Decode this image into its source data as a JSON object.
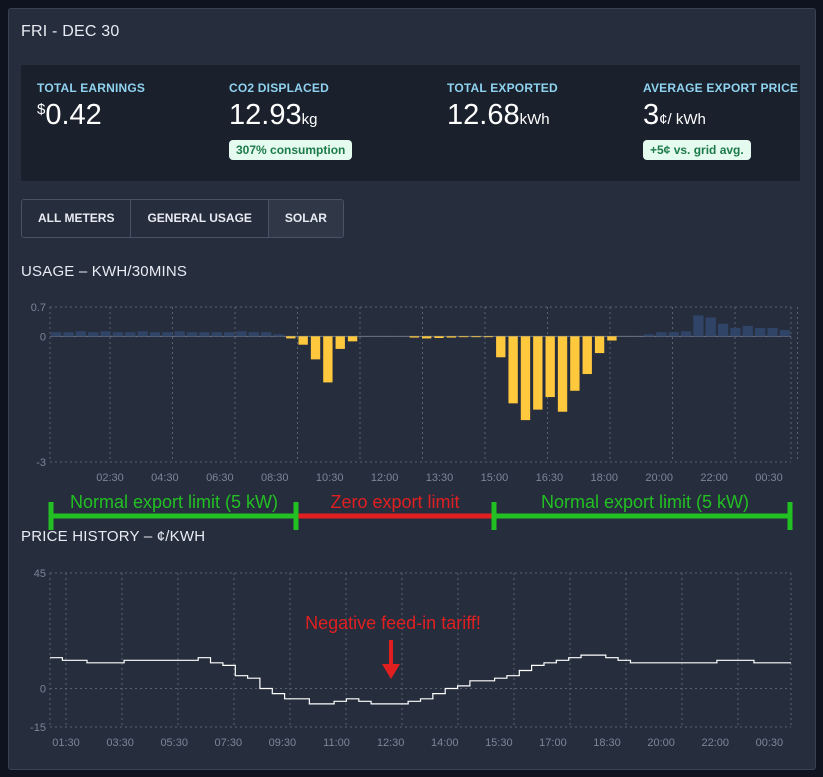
{
  "header": {
    "date": "FRI - DEC 30"
  },
  "stats": {
    "earnings": {
      "label": "TOTAL EARNINGS",
      "symbol": "$",
      "value": "0.42"
    },
    "co2": {
      "label": "CO2 DISPLACED",
      "value": "12.93",
      "unit": "kg",
      "badge": "307% consumption"
    },
    "exported": {
      "label": "TOTAL EXPORTED",
      "value": "12.68",
      "unit": "kWh"
    },
    "price": {
      "label": "AVERAGE EXPORT PRICE",
      "value": "3",
      "unit": "¢/ kWh",
      "badge": "+5¢ vs. grid avg."
    }
  },
  "tabs": [
    "ALL METERS",
    "GENERAL USAGE",
    "SOLAR"
  ],
  "usage_title": "USAGE – KWH/30MINS",
  "price_title": "PRICE HISTORY – ¢/KWH",
  "annotations": {
    "normal_left": "Normal export limit (5 kW)",
    "zero": "Zero export limit",
    "normal_right": "Normal export limit (5 kW)",
    "negative": "Negative feed-in tariff!"
  },
  "colors": {
    "bars": "#ffc83d",
    "usage_bars": "#2f4466",
    "price_line": "#ffffff",
    "green": "#22c022",
    "red": "#e02020"
  },
  "chart_data": [
    {
      "type": "bar",
      "title": "USAGE – KWH/30MINS",
      "ylim": [
        -3,
        0.7
      ],
      "y_ticks": [
        "0.7",
        "0",
        "-3"
      ],
      "x_ticks": [
        "02:30",
        "04:30",
        "06:30",
        "08:30",
        "10:30",
        "12:00",
        "13:30",
        "15:00",
        "16:30",
        "18:00",
        "20:00",
        "22:00",
        "00:30"
      ],
      "series": [
        {
          "values": [
            0,
            0,
            0,
            0,
            0,
            0,
            0,
            0,
            0,
            0,
            0,
            0,
            0,
            0,
            0,
            0,
            0,
            0,
            0,
            -0.05,
            -0.2,
            -0.55,
            -1.1,
            -0.3,
            -0.12,
            0,
            0,
            0,
            0,
            -0.03,
            -0.05,
            -0.04,
            -0.03,
            -0.02,
            -0.02,
            -0.02,
            -0.5,
            -1.6,
            -2.0,
            -1.75,
            -1.45,
            -1.8,
            -1.3,
            -0.9,
            -0.4,
            -0.1,
            0,
            0,
            0,
            0,
            0,
            0,
            0,
            0,
            0,
            0,
            0,
            0,
            0,
            0
          ]
        },
        {
          "values": [
            0.1,
            0.1,
            0.12,
            0.1,
            0.12,
            0.1,
            0.1,
            0.12,
            0.1,
            0.1,
            0.12,
            0.1,
            0.1,
            0.1,
            0.1,
            0.12,
            0.1,
            0.1,
            0.05,
            0,
            0,
            0,
            0,
            0,
            0,
            0,
            0,
            0,
            0,
            0,
            0,
            0,
            0,
            0,
            0,
            0,
            0,
            0,
            0,
            0,
            0,
            0,
            0,
            0,
            0,
            0,
            0,
            0,
            0.05,
            0.1,
            0.1,
            0.12,
            0.5,
            0.45,
            0.3,
            0.2,
            0.25,
            0.2,
            0.2,
            0.15
          ]
        }
      ]
    },
    {
      "type": "line",
      "title": "PRICE HISTORY – ¢/KWH",
      "ylim": [
        -15,
        45
      ],
      "y_ticks": [
        "45",
        "0",
        "-15"
      ],
      "x_ticks": [
        "01:30",
        "03:30",
        "05:30",
        "07:30",
        "09:30",
        "11:00",
        "12:30",
        "14:00",
        "15:30",
        "17:00",
        "18:30",
        "20:00",
        "22:00",
        "00:30"
      ],
      "values": [
        12,
        11,
        11,
        10,
        10,
        10,
        11,
        11,
        11,
        11,
        11,
        11,
        12,
        10,
        9,
        5,
        4,
        0,
        -2,
        -4,
        -4,
        -6,
        -6,
        -5,
        -4,
        -5,
        -6,
        -6,
        -6,
        -5,
        -4,
        -2,
        0,
        1,
        3,
        3,
        4,
        5,
        7,
        9,
        10,
        11,
        12,
        13,
        13,
        12,
        11,
        10,
        10,
        10,
        10,
        10,
        10,
        10,
        11,
        11,
        11,
        10,
        10,
        10
      ]
    }
  ]
}
